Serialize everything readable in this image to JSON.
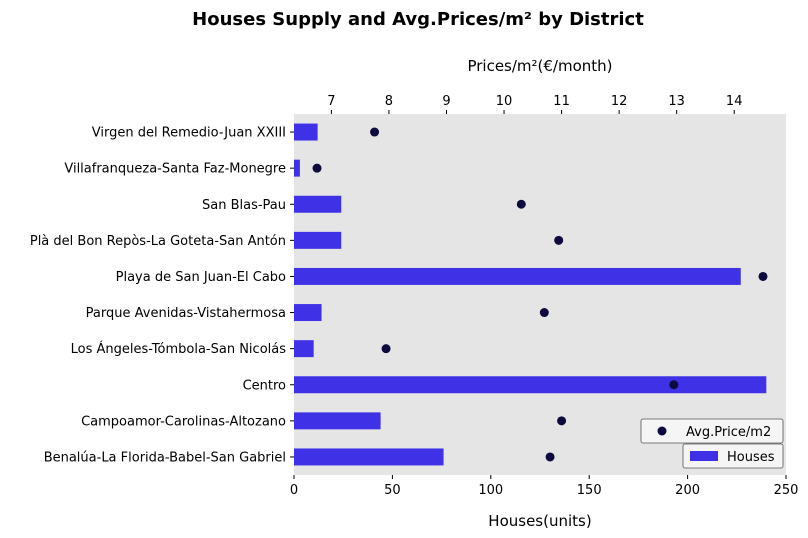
{
  "chart_data": {
    "type": "bar",
    "orientation": "horizontal",
    "title": "Houses Supply and Avg.Prices/m² by District",
    "xlabel": "Houses(units)",
    "x2label": "Prices/m²(€/month)",
    "xlim": [
      0,
      250
    ],
    "x2lim": [
      6.35,
      14.9
    ],
    "x_ticks": [
      0,
      50,
      100,
      150,
      200,
      250
    ],
    "x2_ticks": [
      7,
      8,
      9,
      10,
      11,
      12,
      13,
      14
    ],
    "grid": false,
    "categories": [
      "Virgen del Remedio-Juan XXIII",
      "Villafranqueza-Santa Faz-Monegre",
      "San Blas-Pau",
      "Plà del Bon Repòs-La Goteta-San Antón",
      "Playa de San Juan-El Cabo",
      "Parque Avenidas-Vistahermosa",
      "Los Ángeles-Tómbola-San Nicolás",
      "Centro",
      "Campoamor-Carolinas-Altozano",
      "Benalúa-La Florida-Babel-San Gabriel"
    ],
    "series": [
      {
        "name": "Houses",
        "kind": "bar",
        "axis": "bottom",
        "color": "#3f32e6",
        "values": [
          12,
          3,
          24,
          24,
          227,
          14,
          10,
          240,
          44,
          76
        ]
      },
      {
        "name": "Avg.Price/m2",
        "kind": "scatter",
        "axis": "top",
        "color": "#0d0a3e",
        "values": [
          7.75,
          6.75,
          10.3,
          10.95,
          14.5,
          10.7,
          7.95,
          12.95,
          11.0,
          10.8
        ]
      }
    ],
    "legend": [
      {
        "label": "Avg.Price/m2",
        "placement": "lower-right"
      },
      {
        "label": "Houses",
        "placement": "lower-right"
      }
    ],
    "plot_background": "#e5e5e5"
  }
}
